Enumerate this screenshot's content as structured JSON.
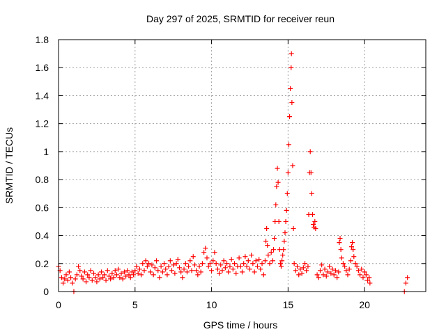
{
  "chart_data": {
    "type": "scatter",
    "title": "Day 297 of 2025, SRMTID for receiver reun",
    "xlabel": "GPS time / hours",
    "ylabel": "SRMTID / TECUs",
    "xlim": [
      0,
      24
    ],
    "ylim": [
      0,
      1.8
    ],
    "xticks": [
      0,
      5,
      10,
      15,
      20
    ],
    "yticks": [
      0,
      0.2,
      0.4,
      0.6,
      0.8,
      1,
      1.2,
      1.4,
      1.6,
      1.8
    ],
    "xtick_labels": [
      "0",
      "5",
      "10",
      "15",
      "20"
    ],
    "ytick_labels": [
      "0",
      "0.2",
      "0.4",
      "0.6",
      "0.8",
      "1",
      "1.2",
      "1.4",
      "1.6",
      "1.8"
    ],
    "grid": true,
    "marker": "+",
    "color": "#ff0000",
    "series": [
      {
        "name": "SRMTID",
        "points": [
          [
            0.0,
            0.18
          ],
          [
            0.1,
            0.15
          ],
          [
            0.2,
            0.1
          ],
          [
            0.3,
            0.06
          ],
          [
            0.4,
            0.09
          ],
          [
            0.5,
            0.12
          ],
          [
            0.6,
            0.08
          ],
          [
            0.7,
            0.14
          ],
          [
            0.8,
            0.1
          ],
          [
            0.9,
            0.06
          ],
          [
            1.0,
            0.0
          ],
          [
            1.1,
            0.09
          ],
          [
            1.2,
            0.12
          ],
          [
            1.3,
            0.18
          ],
          [
            1.4,
            0.15
          ],
          [
            1.5,
            0.11
          ],
          [
            1.6,
            0.09
          ],
          [
            1.7,
            0.14
          ],
          [
            1.8,
            0.07
          ],
          [
            1.9,
            0.12
          ],
          [
            2.0,
            0.1
          ],
          [
            2.1,
            0.15
          ],
          [
            2.2,
            0.08
          ],
          [
            2.3,
            0.13
          ],
          [
            2.4,
            0.1
          ],
          [
            2.5,
            0.07
          ],
          [
            2.6,
            0.12
          ],
          [
            2.7,
            0.09
          ],
          [
            2.8,
            0.14
          ],
          [
            2.9,
            0.1
          ],
          [
            3.0,
            0.12
          ],
          [
            3.1,
            0.08
          ],
          [
            3.2,
            0.15
          ],
          [
            3.3,
            0.11
          ],
          [
            3.4,
            0.09
          ],
          [
            3.5,
            0.13
          ],
          [
            3.6,
            0.1
          ],
          [
            3.7,
            0.15
          ],
          [
            3.8,
            0.12
          ],
          [
            3.9,
            0.16
          ],
          [
            4.0,
            0.1
          ],
          [
            4.1,
            0.13
          ],
          [
            4.2,
            0.09
          ],
          [
            4.3,
            0.14
          ],
          [
            4.4,
            0.11
          ],
          [
            4.5,
            0.15
          ],
          [
            4.6,
            0.12
          ],
          [
            4.7,
            0.1
          ],
          [
            4.8,
            0.14
          ],
          [
            4.9,
            0.12
          ],
          [
            5.0,
            0.15
          ],
          [
            5.1,
            0.18
          ],
          [
            5.2,
            0.13
          ],
          [
            5.3,
            0.16
          ],
          [
            5.4,
            0.12
          ],
          [
            5.5,
            0.2
          ],
          [
            5.6,
            0.15
          ],
          [
            5.7,
            0.22
          ],
          [
            5.8,
            0.18
          ],
          [
            5.9,
            0.2
          ],
          [
            6.0,
            0.14
          ],
          [
            6.1,
            0.19
          ],
          [
            6.2,
            0.12
          ],
          [
            6.3,
            0.17
          ],
          [
            6.4,
            0.22
          ],
          [
            6.5,
            0.15
          ],
          [
            6.6,
            0.1
          ],
          [
            6.7,
            0.18
          ],
          [
            6.8,
            0.14
          ],
          [
            6.9,
            0.2
          ],
          [
            7.0,
            0.16
          ],
          [
            7.1,
            0.12
          ],
          [
            7.2,
            0.18
          ],
          [
            7.3,
            0.22
          ],
          [
            7.4,
            0.15
          ],
          [
            7.5,
            0.19
          ],
          [
            7.6,
            0.13
          ],
          [
            7.7,
            0.2
          ],
          [
            7.8,
            0.23
          ],
          [
            7.9,
            0.17
          ],
          [
            8.0,
            0.14
          ],
          [
            8.1,
            0.1
          ],
          [
            8.2,
            0.16
          ],
          [
            8.3,
            0.2
          ],
          [
            8.4,
            0.14
          ],
          [
            8.5,
            0.18
          ],
          [
            8.6,
            0.22
          ],
          [
            8.7,
            0.15
          ],
          [
            8.8,
            0.25
          ],
          [
            8.9,
            0.19
          ],
          [
            9.0,
            0.15
          ],
          [
            9.1,
            0.12
          ],
          [
            9.2,
            0.18
          ],
          [
            9.3,
            0.14
          ],
          [
            9.4,
            0.2
          ],
          [
            9.5,
            0.28
          ],
          [
            9.6,
            0.31
          ],
          [
            9.7,
            0.24
          ],
          [
            9.8,
            0.18
          ],
          [
            9.9,
            0.2
          ],
          [
            10.0,
            0.15
          ],
          [
            10.1,
            0.22
          ],
          [
            10.2,
            0.28
          ],
          [
            10.3,
            0.2
          ],
          [
            10.4,
            0.16
          ],
          [
            10.5,
            0.13
          ],
          [
            10.6,
            0.19
          ],
          [
            10.7,
            0.15
          ],
          [
            10.8,
            0.22
          ],
          [
            10.9,
            0.17
          ],
          [
            11.0,
            0.2
          ],
          [
            11.1,
            0.14
          ],
          [
            11.2,
            0.18
          ],
          [
            11.3,
            0.23
          ],
          [
            11.4,
            0.16
          ],
          [
            11.5,
            0.2
          ],
          [
            11.6,
            0.13
          ],
          [
            11.7,
            0.18
          ],
          [
            11.8,
            0.24
          ],
          [
            11.9,
            0.18
          ],
          [
            12.0,
            0.14
          ],
          [
            12.1,
            0.2
          ],
          [
            12.2,
            0.25
          ],
          [
            12.3,
            0.18
          ],
          [
            12.4,
            0.22
          ],
          [
            12.5,
            0.16
          ],
          [
            12.6,
            0.26
          ],
          [
            12.7,
            0.2
          ],
          [
            12.8,
            0.14
          ],
          [
            12.9,
            0.22
          ],
          [
            13.0,
            0.18
          ],
          [
            13.1,
            0.23
          ],
          [
            13.2,
            0.16
          ],
          [
            13.3,
            0.2
          ],
          [
            13.4,
            0.12
          ],
          [
            13.5,
            0.22
          ],
          [
            13.55,
            0.36
          ],
          [
            13.6,
            0.45
          ],
          [
            13.65,
            0.33
          ],
          [
            13.7,
            0.26
          ],
          [
            13.8,
            0.2
          ],
          [
            13.9,
            0.28
          ],
          [
            14.0,
            0.22
          ],
          [
            14.05,
            0.3
          ],
          [
            14.1,
            0.38
          ],
          [
            14.15,
            0.5
          ],
          [
            14.2,
            0.62
          ],
          [
            14.25,
            0.75
          ],
          [
            14.3,
            0.88
          ],
          [
            14.35,
            0.78
          ],
          [
            14.4,
            0.5
          ],
          [
            14.45,
            0.3
          ],
          [
            14.5,
            0.2
          ],
          [
            14.55,
            0.18
          ],
          [
            14.6,
            0.22
          ],
          [
            14.65,
            0.26
          ],
          [
            14.7,
            0.3
          ],
          [
            14.75,
            0.36
          ],
          [
            14.8,
            0.42
          ],
          [
            14.85,
            0.5
          ],
          [
            14.9,
            0.58
          ],
          [
            14.95,
            0.7
          ],
          [
            15.0,
            0.85
          ],
          [
            15.05,
            1.05
          ],
          [
            15.1,
            1.25
          ],
          [
            15.15,
            1.45
          ],
          [
            15.2,
            1.6
          ],
          [
            15.22,
            1.7
          ],
          [
            15.25,
            1.35
          ],
          [
            15.3,
            0.9
          ],
          [
            15.35,
            0.45
          ],
          [
            15.4,
            0.2
          ],
          [
            15.5,
            0.15
          ],
          [
            15.6,
            0.18
          ],
          [
            15.7,
            0.12
          ],
          [
            15.8,
            0.16
          ],
          [
            15.9,
            0.13
          ],
          [
            16.0,
            0.17
          ],
          [
            16.1,
            0.2
          ],
          [
            16.2,
            0.15
          ],
          [
            16.3,
            0.18
          ],
          [
            16.35,
            0.55
          ],
          [
            16.4,
            0.85
          ],
          [
            16.45,
            1.0
          ],
          [
            16.5,
            0.85
          ],
          [
            16.55,
            0.7
          ],
          [
            16.6,
            0.55
          ],
          [
            16.65,
            0.48
          ],
          [
            16.7,
            0.46
          ],
          [
            16.75,
            0.5
          ],
          [
            16.8,
            0.45
          ],
          [
            16.9,
            0.12
          ],
          [
            17.0,
            0.1
          ],
          [
            17.1,
            0.15
          ],
          [
            17.2,
            0.19
          ],
          [
            17.3,
            0.12
          ],
          [
            17.4,
            0.16
          ],
          [
            17.5,
            0.11
          ],
          [
            17.6,
            0.14
          ],
          [
            17.7,
            0.18
          ],
          [
            17.8,
            0.13
          ],
          [
            17.9,
            0.16
          ],
          [
            18.0,
            0.12
          ],
          [
            18.1,
            0.15
          ],
          [
            18.2,
            0.1
          ],
          [
            18.3,
            0.14
          ],
          [
            18.35,
            0.35
          ],
          [
            18.4,
            0.38
          ],
          [
            18.45,
            0.3
          ],
          [
            18.5,
            0.24
          ],
          [
            18.6,
            0.2
          ],
          [
            18.7,
            0.18
          ],
          [
            18.8,
            0.15
          ],
          [
            18.9,
            0.12
          ],
          [
            19.0,
            0.16
          ],
          [
            19.1,
            0.22
          ],
          [
            19.15,
            0.32
          ],
          [
            19.2,
            0.35
          ],
          [
            19.25,
            0.3
          ],
          [
            19.3,
            0.25
          ],
          [
            19.4,
            0.2
          ],
          [
            19.5,
            0.18
          ],
          [
            19.6,
            0.15
          ],
          [
            19.7,
            0.12
          ],
          [
            19.8,
            0.16
          ],
          [
            19.9,
            0.1
          ],
          [
            20.0,
            0.14
          ],
          [
            20.1,
            0.12
          ],
          [
            20.2,
            0.08
          ],
          [
            20.3,
            0.1
          ],
          [
            20.35,
            0.06
          ],
          [
            22.6,
            0.0
          ],
          [
            22.7,
            0.06
          ],
          [
            22.8,
            0.1
          ]
        ]
      }
    ]
  }
}
